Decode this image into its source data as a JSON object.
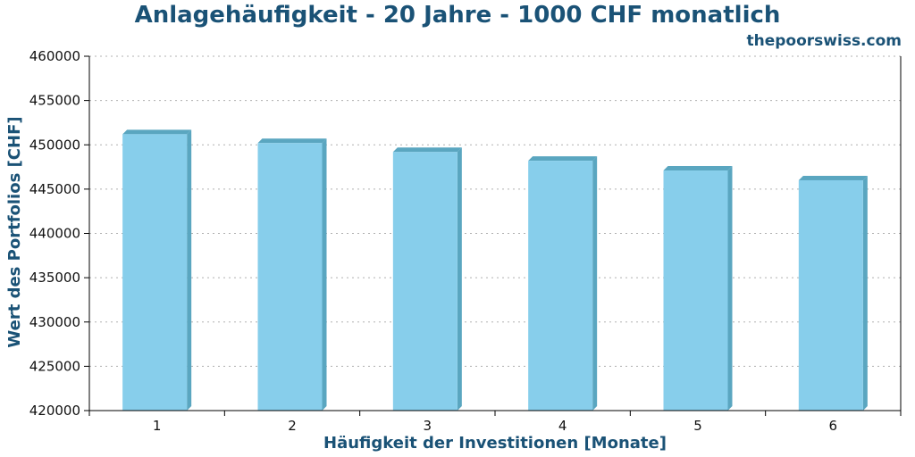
{
  "chart_data": {
    "type": "bar",
    "title": "Anlagehäufigkeit - 20 Jahre - 1000 CHF monatlich",
    "source": "thepoorswiss.com",
    "xlabel": "Häufigkeit der Investitionen [Monate]",
    "ylabel": "Wert des Portfolios [CHF]",
    "categories": [
      "1",
      "2",
      "3",
      "4",
      "5",
      "6"
    ],
    "values": [
      451200,
      450200,
      449200,
      448200,
      447100,
      446000
    ],
    "ylim": [
      420000,
      460000
    ],
    "yticks": [
      "420000",
      "425000",
      "430000",
      "435000",
      "440000",
      "445000",
      "450000",
      "455000",
      "460000"
    ],
    "grid": true,
    "colors": {
      "bar_face": "#87ceeb",
      "bar_side": "#5aa6c0",
      "title": "#1a5276",
      "grid": "#b0b0b0"
    }
  }
}
